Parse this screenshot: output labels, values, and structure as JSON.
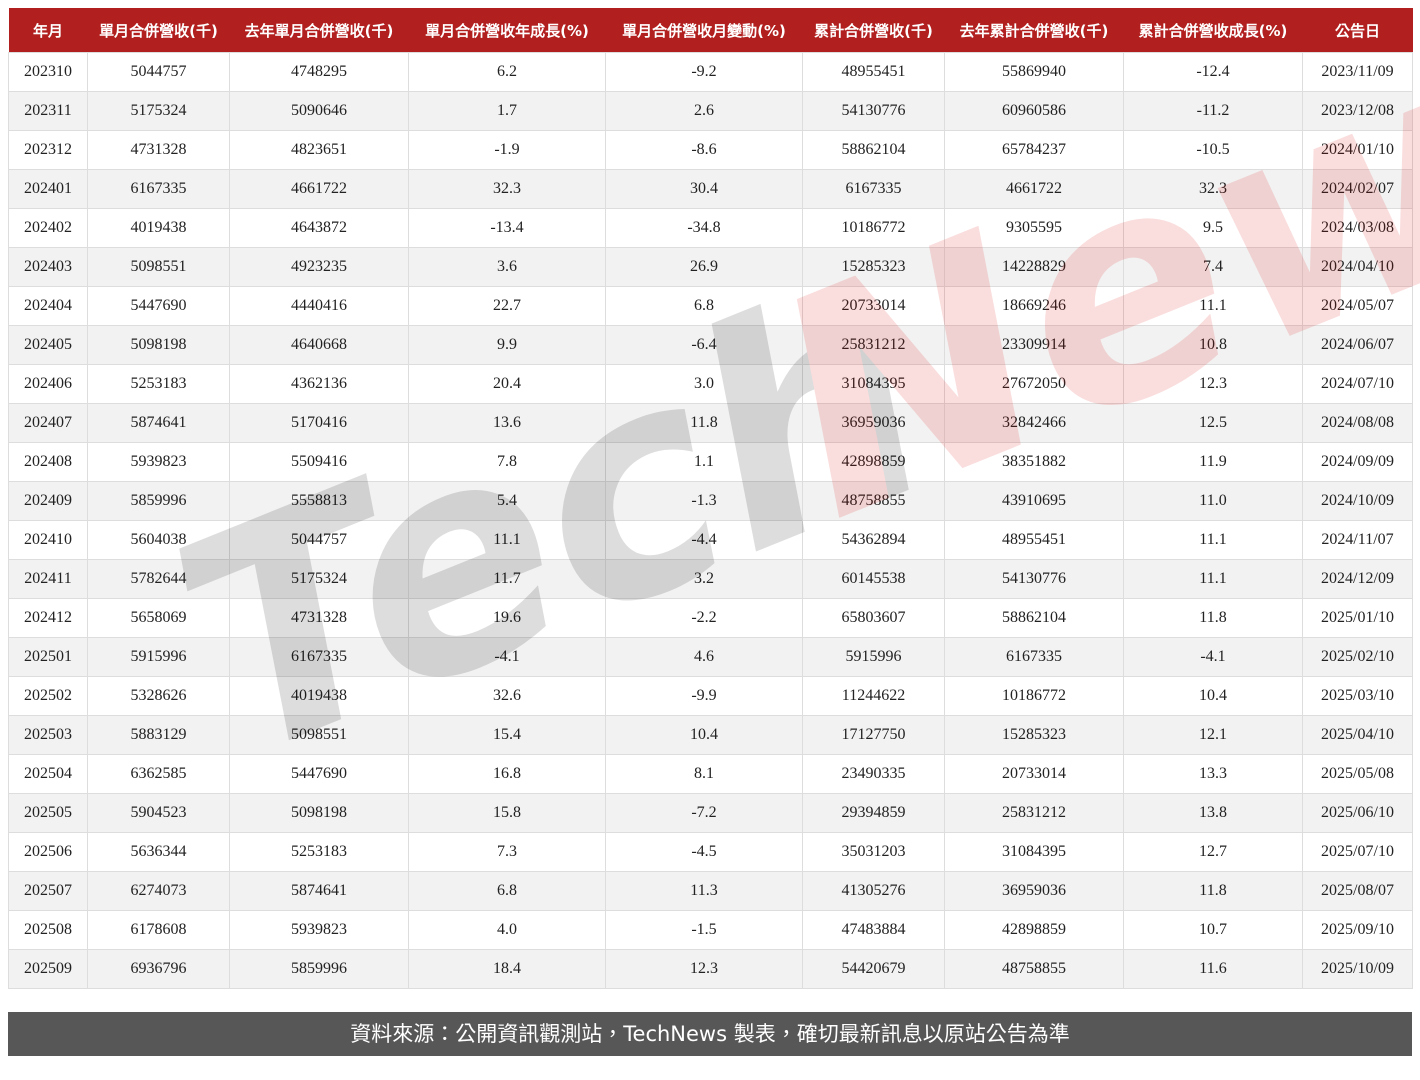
{
  "table": {
    "headers": [
      "年月",
      "單月合併營收(千)",
      "去年單月合併營收(千)",
      "單月合併營收年成長(%)",
      "單月合併營收月變動(%)",
      "累計合併營收(千)",
      "去年累計合併營收(千)",
      "累計合併營收成長(%)",
      "公告日"
    ],
    "rows": [
      [
        "202310",
        "5044757",
        "4748295",
        "6.2",
        "-9.2",
        "48955451",
        "55869940",
        "-12.4",
        "2023/11/09"
      ],
      [
        "202311",
        "5175324",
        "5090646",
        "1.7",
        "2.6",
        "54130776",
        "60960586",
        "-11.2",
        "2023/12/08"
      ],
      [
        "202312",
        "4731328",
        "4823651",
        "-1.9",
        "-8.6",
        "58862104",
        "65784237",
        "-10.5",
        "2024/01/10"
      ],
      [
        "202401",
        "6167335",
        "4661722",
        "32.3",
        "30.4",
        "6167335",
        "4661722",
        "32.3",
        "2024/02/07"
      ],
      [
        "202402",
        "4019438",
        "4643872",
        "-13.4",
        "-34.8",
        "10186772",
        "9305595",
        "9.5",
        "2024/03/08"
      ],
      [
        "202403",
        "5098551",
        "4923235",
        "3.6",
        "26.9",
        "15285323",
        "14228829",
        "7.4",
        "2024/04/10"
      ],
      [
        "202404",
        "5447690",
        "4440416",
        "22.7",
        "6.8",
        "20733014",
        "18669246",
        "11.1",
        "2024/05/07"
      ],
      [
        "202405",
        "5098198",
        "4640668",
        "9.9",
        "-6.4",
        "25831212",
        "23309914",
        "10.8",
        "2024/06/07"
      ],
      [
        "202406",
        "5253183",
        "4362136",
        "20.4",
        "3.0",
        "31084395",
        "27672050",
        "12.3",
        "2024/07/10"
      ],
      [
        "202407",
        "5874641",
        "5170416",
        "13.6",
        "11.8",
        "36959036",
        "32842466",
        "12.5",
        "2024/08/08"
      ],
      [
        "202408",
        "5939823",
        "5509416",
        "7.8",
        "1.1",
        "42898859",
        "38351882",
        "11.9",
        "2024/09/09"
      ],
      [
        "202409",
        "5859996",
        "5558813",
        "5.4",
        "-1.3",
        "48758855",
        "43910695",
        "11.0",
        "2024/10/09"
      ],
      [
        "202410",
        "5604038",
        "5044757",
        "11.1",
        "-4.4",
        "54362894",
        "48955451",
        "11.1",
        "2024/11/07"
      ],
      [
        "202411",
        "5782644",
        "5175324",
        "11.7",
        "3.2",
        "60145538",
        "54130776",
        "11.1",
        "2024/12/09"
      ],
      [
        "202412",
        "5658069",
        "4731328",
        "19.6",
        "-2.2",
        "65803607",
        "58862104",
        "11.8",
        "2025/01/10"
      ],
      [
        "202501",
        "5915996",
        "6167335",
        "-4.1",
        "4.6",
        "5915996",
        "6167335",
        "-4.1",
        "2025/02/10"
      ],
      [
        "202502",
        "5328626",
        "4019438",
        "32.6",
        "-9.9",
        "11244622",
        "10186772",
        "10.4",
        "2025/03/10"
      ],
      [
        "202503",
        "5883129",
        "5098551",
        "15.4",
        "10.4",
        "17127750",
        "15285323",
        "12.1",
        "2025/04/10"
      ],
      [
        "202504",
        "6362585",
        "5447690",
        "16.8",
        "8.1",
        "23490335",
        "20733014",
        "13.3",
        "2025/05/08"
      ],
      [
        "202505",
        "5904523",
        "5098198",
        "15.8",
        "-7.2",
        "29394859",
        "25831212",
        "13.8",
        "2025/06/10"
      ],
      [
        "202506",
        "5636344",
        "5253183",
        "7.3",
        "-4.5",
        "35031203",
        "31084395",
        "12.7",
        "2025/07/10"
      ],
      [
        "202507",
        "6274073",
        "5874641",
        "6.8",
        "11.3",
        "41305276",
        "36959036",
        "11.8",
        "2025/08/07"
      ],
      [
        "202508",
        "6178608",
        "5939823",
        "4.0",
        "-1.5",
        "47483884",
        "42898859",
        "10.7",
        "2025/09/10"
      ],
      [
        "202509",
        "6936796",
        "5859996",
        "18.4",
        "12.3",
        "54420679",
        "48758855",
        "11.6",
        "2025/10/09"
      ]
    ]
  },
  "watermark": {
    "tech": "Tech",
    "news": "News"
  },
  "footer": "資料來源：公開資訊觀測站，TechNews 製表，確切最新訊息以原站公告為準"
}
